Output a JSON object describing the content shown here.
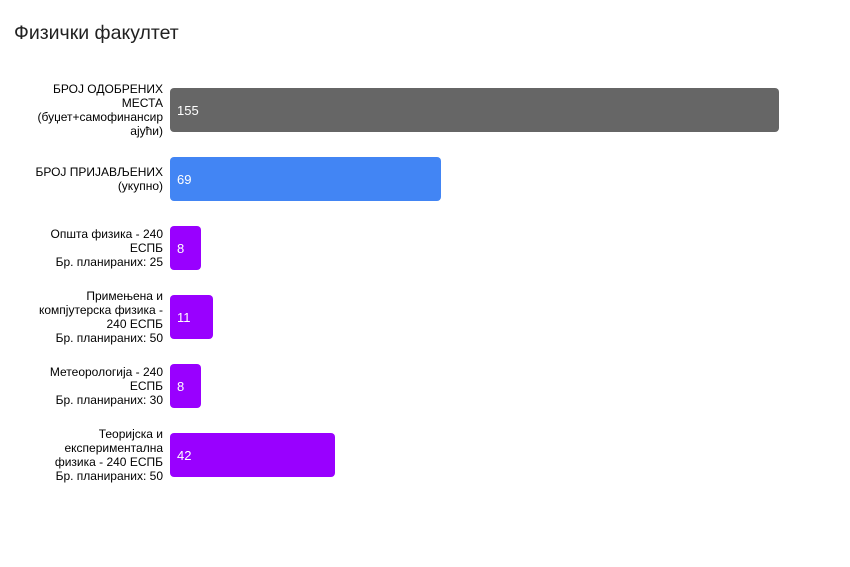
{
  "chart": {
    "title": "Физички факултет"
  },
  "chart_data": {
    "type": "bar",
    "orientation": "horizontal",
    "title": "Физички факултет",
    "categories": [
      "БРОЈ ОДОБРЕНИХ\nМЕСТА\n(буџет+самофинансир\nајући)",
      "БРОЈ ПРИЈАВЉЕНИХ\n(укупно)",
      "Општа физика - 240\nЕСПБ\nБр. планираних: 25",
      "Примењена и\nкомпјутерска физика -\n240 ЕСПБ\nБр. планираних: 50",
      "Метеорологија - 240\nЕСПБ\nБр. планираних: 30",
      "Теоријска и\nекспериментална\nфизика - 240 ЕСПБ\nБр. планираних: 50"
    ],
    "values": [
      155,
      69,
      8,
      11,
      8,
      42
    ],
    "bar_colors": [
      "#666666",
      "#4285F4",
      "#9900FF",
      "#9900FF",
      "#9900FF",
      "#9900FF"
    ],
    "value_label_color": "#ffffff",
    "category_label_color": "#000000",
    "xlim": [
      0,
      155
    ],
    "grid": false,
    "legend": "none",
    "axes_visible": false
  }
}
